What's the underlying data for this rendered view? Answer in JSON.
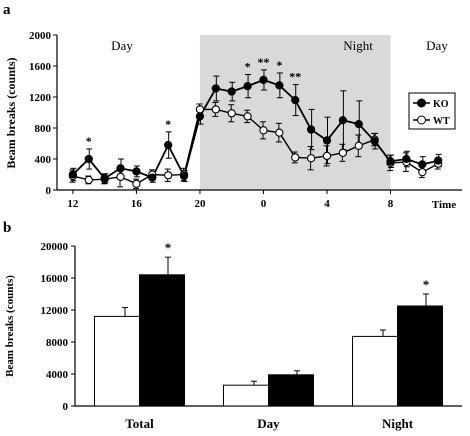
{
  "chart_data": [
    {
      "panel": "a",
      "type": "line",
      "ylabel": "Beam breaks (counts)",
      "xlabel": "Time",
      "ylim": [
        0,
        2000
      ],
      "yticks": [
        0,
        400,
        800,
        1200,
        1600,
        2000
      ],
      "xticks": [
        "12",
        "16",
        "20",
        "0",
        "4",
        "8"
      ],
      "x_hours": [
        12,
        13,
        14,
        15,
        16,
        17,
        18,
        19,
        20,
        21,
        22,
        23,
        24,
        25,
        26,
        27,
        28,
        29,
        30,
        31,
        32,
        33,
        34,
        35,
        36
      ],
      "shaded_region": [
        20,
        32
      ],
      "period_labels": [
        "Day",
        "Night",
        "Day"
      ],
      "legend_position": "right",
      "series": [
        {
          "name": "KO",
          "marker": "filled-circle",
          "values": [
            200,
            400,
            150,
            280,
            240,
            160,
            580,
            180,
            950,
            1310,
            1270,
            1340,
            1420,
            1350,
            1160,
            780,
            640,
            900,
            850,
            630,
            370,
            400,
            330,
            380,
            null
          ],
          "errors": [
            80,
            130,
            60,
            120,
            70,
            60,
            170,
            70,
            100,
            160,
            120,
            150,
            130,
            160,
            200,
            260,
            300,
            380,
            300,
            100,
            80,
            100,
            100,
            80,
            null
          ]
        },
        {
          "name": "WT",
          "marker": "open-circle",
          "values": [
            180,
            130,
            140,
            170,
            80,
            200,
            190,
            200,
            1040,
            1040,
            990,
            950,
            770,
            740,
            420,
            410,
            440,
            480,
            570,
            650,
            350,
            360,
            230,
            340,
            null
          ],
          "errors": [
            80,
            50,
            60,
            130,
            60,
            60,
            80,
            80,
            70,
            90,
            110,
            80,
            110,
            120,
            70,
            150,
            130,
            110,
            140,
            80,
            100,
            120,
            70,
            70,
            null
          ]
        }
      ],
      "annotations": [
        {
          "x": 13,
          "text": "*"
        },
        {
          "x": 18,
          "text": "*"
        },
        {
          "x": 23,
          "text": "*"
        },
        {
          "x": 24,
          "text": "**"
        },
        {
          "x": 25,
          "text": "*"
        },
        {
          "x": 26,
          "text": "**"
        }
      ]
    },
    {
      "panel": "b",
      "type": "bar",
      "ylabel": "Beam breaks (counts)",
      "ylim": [
        0,
        20000
      ],
      "yticks": [
        0,
        4000,
        8000,
        12000,
        16000,
        20000
      ],
      "categories": [
        "Total",
        "Day",
        "Night"
      ],
      "series": [
        {
          "name": "",
          "color": "#ffffff",
          "values": [
            11200,
            2600,
            8700
          ],
          "errors": [
            1100,
            500,
            800
          ]
        },
        {
          "name": "",
          "color": "#000000",
          "values": [
            16400,
            3900,
            12500
          ],
          "errors": [
            2200,
            500,
            1500
          ]
        }
      ],
      "annotations": [
        {
          "category": "Total",
          "text": "*"
        },
        {
          "category": "Night",
          "text": "*"
        }
      ]
    }
  ]
}
